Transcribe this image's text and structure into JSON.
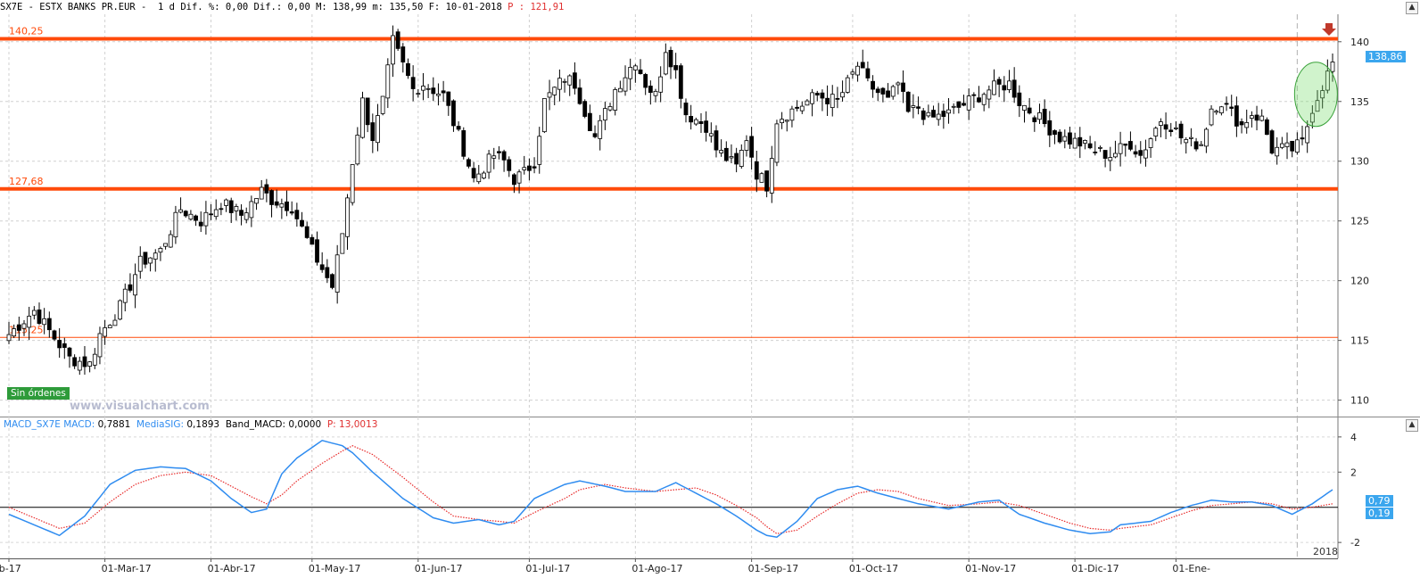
{
  "header": {
    "symbol": "SX7E",
    "name": "ESTX BANKS PR.EUR",
    "period": "1 d",
    "dif_pct_label": "Dif. %:",
    "dif_pct": "0,00",
    "dif_label": "Dif.:",
    "dif": "0,00",
    "max_label": "M:",
    "max": "138,99",
    "min_label": "m:",
    "min": "135,50",
    "date_label": "F:",
    "date": "10-01-2018",
    "p_label": "P :",
    "p": "121,91"
  },
  "window_buttons": [
    "▲",
    "▲"
  ],
  "level_labels": {
    "upper": "140,25",
    "lower": "127,68",
    "low": "115,25"
  },
  "badges": {
    "price": "138,86",
    "macd": "0,79",
    "signal": "0,19"
  },
  "no_orders_label": "Sin órdenes",
  "watermark": "www.visualchart.com",
  "macd_header": {
    "name": "MACD_SX7E",
    "macd_label": "MACD:",
    "macd": "0,7881",
    "sig_label": "MediaSIG:",
    "sig": "0,1893",
    "band_label": "Band_MACD:",
    "band": "0,0000",
    "p_label": "P:",
    "p": "13,0013"
  },
  "year_label": "2018",
  "colors": {
    "support": "#ff4a0a",
    "macd": "#2f8cf0",
    "signal": "#e82a2a",
    "badge": "#3ba6ee"
  },
  "chart_data": [
    {
      "type": "candlestick",
      "series": [
        {
          "name": "SX7E"
        }
      ],
      "price_ylim": [
        109,
        142
      ],
      "y_ticks": [
        110,
        115,
        120,
        125,
        130,
        135,
        140
      ],
      "x_tick_labels": [
        "eb-17",
        "01-Mar-17",
        "01-Abr-17",
        "01-May-17",
        "01-Jun-17",
        "01-Jul-17",
        "01-Ago-17",
        "01-Sep-17",
        "01-Oct-17",
        "01-Nov-17",
        "01-Dic-17",
        "01-Ene-"
      ],
      "horizontal_levels": [
        140.25,
        127.68,
        115.25
      ],
      "close_path": [
        [
          0,
          115.5
        ],
        [
          5,
          117.5
        ],
        [
          12,
          113.5
        ],
        [
          16,
          113
        ],
        [
          18,
          115.5
        ],
        [
          22,
          117.8
        ],
        [
          26,
          121.5
        ],
        [
          30,
          122.5
        ],
        [
          34,
          126
        ],
        [
          38,
          125
        ],
        [
          42,
          126.5
        ],
        [
          46,
          125.5
        ],
        [
          50,
          127.5
        ],
        [
          52,
          126.8
        ],
        [
          56,
          126.2
        ],
        [
          60,
          122.5
        ],
        [
          64,
          119.5
        ],
        [
          66,
          124
        ],
        [
          68,
          130
        ],
        [
          70,
          135
        ],
        [
          72,
          132
        ],
        [
          74,
          135
        ],
        [
          76,
          140
        ],
        [
          78,
          138
        ],
        [
          80,
          136
        ],
        [
          82,
          136.5
        ],
        [
          86,
          135.5
        ],
        [
          90,
          131
        ],
        [
          92,
          128.5
        ],
        [
          96,
          130.5
        ],
        [
          98,
          130
        ],
        [
          100,
          128.5
        ],
        [
          102,
          129
        ],
        [
          104,
          130
        ],
        [
          106,
          135
        ],
        [
          110,
          137
        ],
        [
          112,
          136.5
        ],
        [
          116,
          132
        ],
        [
          120,
          136
        ],
        [
          124,
          138.5
        ],
        [
          126,
          136.5
        ],
        [
          128,
          135.5
        ],
        [
          130,
          139.5
        ],
        [
          132,
          137.5
        ],
        [
          134,
          134
        ],
        [
          138,
          133
        ],
        [
          140,
          131
        ],
        [
          144,
          129.5
        ],
        [
          146,
          132
        ],
        [
          148,
          129
        ],
        [
          150,
          128
        ],
        [
          152,
          133.5
        ],
        [
          156,
          134.5
        ],
        [
          160,
          135.5
        ],
        [
          164,
          135
        ],
        [
          168,
          138
        ],
        [
          170,
          136.5
        ],
        [
          174,
          135
        ],
        [
          176,
          136.5
        ],
        [
          178,
          134
        ],
        [
          180,
          134.5
        ],
        [
          182,
          133.5
        ],
        [
          186,
          134
        ],
        [
          190,
          135
        ],
        [
          194,
          136
        ],
        [
          198,
          136.5
        ],
        [
          200,
          135
        ],
        [
          204,
          133.5
        ],
        [
          208,
          132
        ],
        [
          212,
          131.5
        ],
        [
          214,
          131
        ],
        [
          218,
          130.5
        ],
        [
          222,
          131.5
        ],
        [
          224,
          130.5
        ],
        [
          226,
          132
        ],
        [
          228,
          133.5
        ],
        [
          230,
          133
        ],
        [
          232,
          132
        ],
        [
          234,
          131.5
        ],
        [
          236,
          131.5
        ],
        [
          238,
          134.5
        ],
        [
          240,
          135
        ],
        [
          242,
          134
        ],
        [
          244,
          133
        ],
        [
          246,
          134
        ],
        [
          248,
          133.5
        ],
        [
          250,
          131
        ],
        [
          254,
          131
        ],
        [
          256,
          131.5
        ],
        [
          258,
          134.5
        ],
        [
          262,
          138.2
        ]
      ]
    },
    {
      "type": "line",
      "series": [
        {
          "name": "MACD"
        },
        {
          "name": "MediaSIG"
        }
      ],
      "ylim": [
        -2.5,
        4.5
      ],
      "y_ticks": [
        -2,
        2,
        4
      ],
      "zero_line": 0,
      "macd_values": [
        [
          0,
          -0.4
        ],
        [
          10,
          -1.6
        ],
        [
          15,
          -0.5
        ],
        [
          20,
          1.3
        ],
        [
          25,
          2.1
        ],
        [
          30,
          2.3
        ],
        [
          35,
          2.2
        ],
        [
          40,
          1.5
        ],
        [
          44,
          0.5
        ],
        [
          48,
          -0.3
        ],
        [
          51,
          -0.1
        ],
        [
          54,
          1.9
        ],
        [
          57,
          2.8
        ],
        [
          62,
          3.8
        ],
        [
          66,
          3.5
        ],
        [
          68,
          3.1
        ],
        [
          72,
          2.0
        ],
        [
          78,
          0.5
        ],
        [
          84,
          -0.6
        ],
        [
          88,
          -0.9
        ],
        [
          93,
          -0.7
        ],
        [
          97,
          -1.0
        ],
        [
          100,
          -0.8
        ],
        [
          104,
          0.5
        ],
        [
          110,
          1.3
        ],
        [
          113,
          1.5
        ],
        [
          118,
          1.2
        ],
        [
          122,
          0.9
        ],
        [
          128,
          0.9
        ],
        [
          132,
          1.4
        ],
        [
          136,
          0.8
        ],
        [
          140,
          0.2
        ],
        [
          144,
          -0.5
        ],
        [
          148,
          -1.3
        ],
        [
          150,
          -1.6
        ],
        [
          152,
          -1.7
        ],
        [
          156,
          -0.8
        ],
        [
          160,
          0.5
        ],
        [
          164,
          1.0
        ],
        [
          168,
          1.2
        ],
        [
          172,
          0.8
        ],
        [
          176,
          0.5
        ],
        [
          180,
          0.2
        ],
        [
          186,
          -0.1
        ],
        [
          192,
          0.3
        ],
        [
          196,
          0.4
        ],
        [
          200,
          -0.4
        ],
        [
          205,
          -0.9
        ],
        [
          210,
          -1.3
        ],
        [
          214,
          -1.5
        ],
        [
          218,
          -1.4
        ],
        [
          220,
          -1.0
        ],
        [
          226,
          -0.8
        ],
        [
          230,
          -0.3
        ],
        [
          234,
          0.1
        ],
        [
          238,
          0.4
        ],
        [
          242,
          0.3
        ],
        [
          246,
          0.3
        ],
        [
          250,
          0.1
        ],
        [
          254,
          -0.4
        ],
        [
          258,
          0.2
        ],
        [
          262,
          1.0
        ]
      ],
      "signal_values": [
        [
          0,
          0.0
        ],
        [
          10,
          -1.2
        ],
        [
          15,
          -0.9
        ],
        [
          20,
          0.3
        ],
        [
          25,
          1.3
        ],
        [
          30,
          1.8
        ],
        [
          35,
          2.0
        ],
        [
          40,
          1.8
        ],
        [
          44,
          1.2
        ],
        [
          48,
          0.6
        ],
        [
          51,
          0.2
        ],
        [
          54,
          0.7
        ],
        [
          57,
          1.5
        ],
        [
          62,
          2.5
        ],
        [
          66,
          3.2
        ],
        [
          68,
          3.5
        ],
        [
          72,
          3.0
        ],
        [
          78,
          1.7
        ],
        [
          84,
          0.3
        ],
        [
          88,
          -0.5
        ],
        [
          93,
          -0.7
        ],
        [
          97,
          -0.8
        ],
        [
          100,
          -0.9
        ],
        [
          104,
          -0.3
        ],
        [
          110,
          0.5
        ],
        [
          113,
          1.0
        ],
        [
          118,
          1.3
        ],
        [
          122,
          1.1
        ],
        [
          128,
          0.9
        ],
        [
          132,
          1.0
        ],
        [
          136,
          1.1
        ],
        [
          140,
          0.7
        ],
        [
          144,
          0.1
        ],
        [
          148,
          -0.6
        ],
        [
          150,
          -1.1
        ],
        [
          152,
          -1.5
        ],
        [
          156,
          -1.3
        ],
        [
          160,
          -0.5
        ],
        [
          164,
          0.2
        ],
        [
          168,
          0.8
        ],
        [
          172,
          1.0
        ],
        [
          176,
          0.9
        ],
        [
          180,
          0.5
        ],
        [
          186,
          0.1
        ],
        [
          192,
          0.2
        ],
        [
          196,
          0.3
        ],
        [
          200,
          0.1
        ],
        [
          205,
          -0.4
        ],
        [
          210,
          -0.9
        ],
        [
          214,
          -1.2
        ],
        [
          218,
          -1.3
        ],
        [
          220,
          -1.2
        ],
        [
          226,
          -1.0
        ],
        [
          230,
          -0.6
        ],
        [
          234,
          -0.2
        ],
        [
          238,
          0.1
        ],
        [
          242,
          0.2
        ],
        [
          246,
          0.3
        ],
        [
          250,
          0.2
        ],
        [
          254,
          -0.1
        ],
        [
          258,
          0.0
        ],
        [
          262,
          0.2
        ]
      ]
    }
  ]
}
